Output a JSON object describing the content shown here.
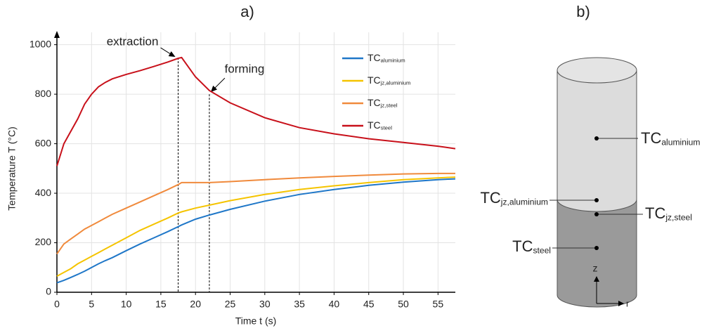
{
  "chart_data": {
    "type": "line",
    "panel": "a)",
    "x_label": "Time t (s)",
    "y_label": "Temperature T (°C)",
    "x": [
      0,
      1,
      2,
      3,
      4,
      5,
      6,
      7,
      8,
      10,
      12,
      14,
      16,
      17.5,
      18,
      20,
      22,
      25,
      30,
      35,
      40,
      45,
      50,
      55,
      57.5
    ],
    "series": [
      {
        "name": "TC",
        "subscript": "aluminium",
        "color": "#1f77c8",
        "values": [
          38,
          48,
          60,
          72,
          85,
          100,
          115,
          128,
          140,
          168,
          195,
          220,
          245,
          265,
          272,
          295,
          312,
          335,
          368,
          395,
          415,
          432,
          445,
          455,
          458
        ]
      },
      {
        "name": "TC",
        "subscript": "jz,aluminium",
        "color": "#f5c400",
        "values": [
          65,
          80,
          95,
          115,
          130,
          145,
          160,
          175,
          190,
          220,
          250,
          275,
          300,
          320,
          325,
          340,
          352,
          370,
          395,
          415,
          430,
          443,
          455,
          462,
          465
        ]
      },
      {
        "name": "TC",
        "subscript": "jz,steel",
        "color": "#f08a3c",
        "values": [
          155,
          195,
          215,
          235,
          255,
          270,
          285,
          300,
          315,
          340,
          365,
          390,
          415,
          435,
          443,
          443,
          443,
          447,
          455,
          462,
          468,
          473,
          478,
          480,
          480
        ]
      },
      {
        "name": "TC",
        "subscript": "steel",
        "color": "#c8101a",
        "values": [
          510,
          600,
          650,
          700,
          760,
          800,
          830,
          848,
          862,
          880,
          895,
          912,
          930,
          945,
          948,
          870,
          815,
          765,
          705,
          665,
          640,
          620,
          605,
          590,
          580
        ]
      }
    ],
    "xlim": [
      0,
      57.5
    ],
    "ylim": [
      0,
      1050
    ],
    "xticks": [
      0,
      5,
      10,
      15,
      20,
      25,
      30,
      35,
      40,
      45,
      50,
      55
    ],
    "yticks": [
      0,
      200,
      400,
      600,
      800,
      1000
    ],
    "grid": true,
    "annotations": [
      {
        "text": "extraction",
        "x": 17.5,
        "y": 948
      },
      {
        "text": "forming",
        "x": 22,
        "y": 800
      }
    ]
  },
  "diagram": {
    "panel": "b)",
    "sensors": [
      {
        "name": "TC",
        "subscript": "aluminium"
      },
      {
        "name": "TC",
        "subscript": "jz,aluminium"
      },
      {
        "name": "TC",
        "subscript": "jz,steel"
      },
      {
        "name": "TC",
        "subscript": "steel"
      }
    ],
    "axes": {
      "z": "z",
      "r": "r"
    }
  }
}
